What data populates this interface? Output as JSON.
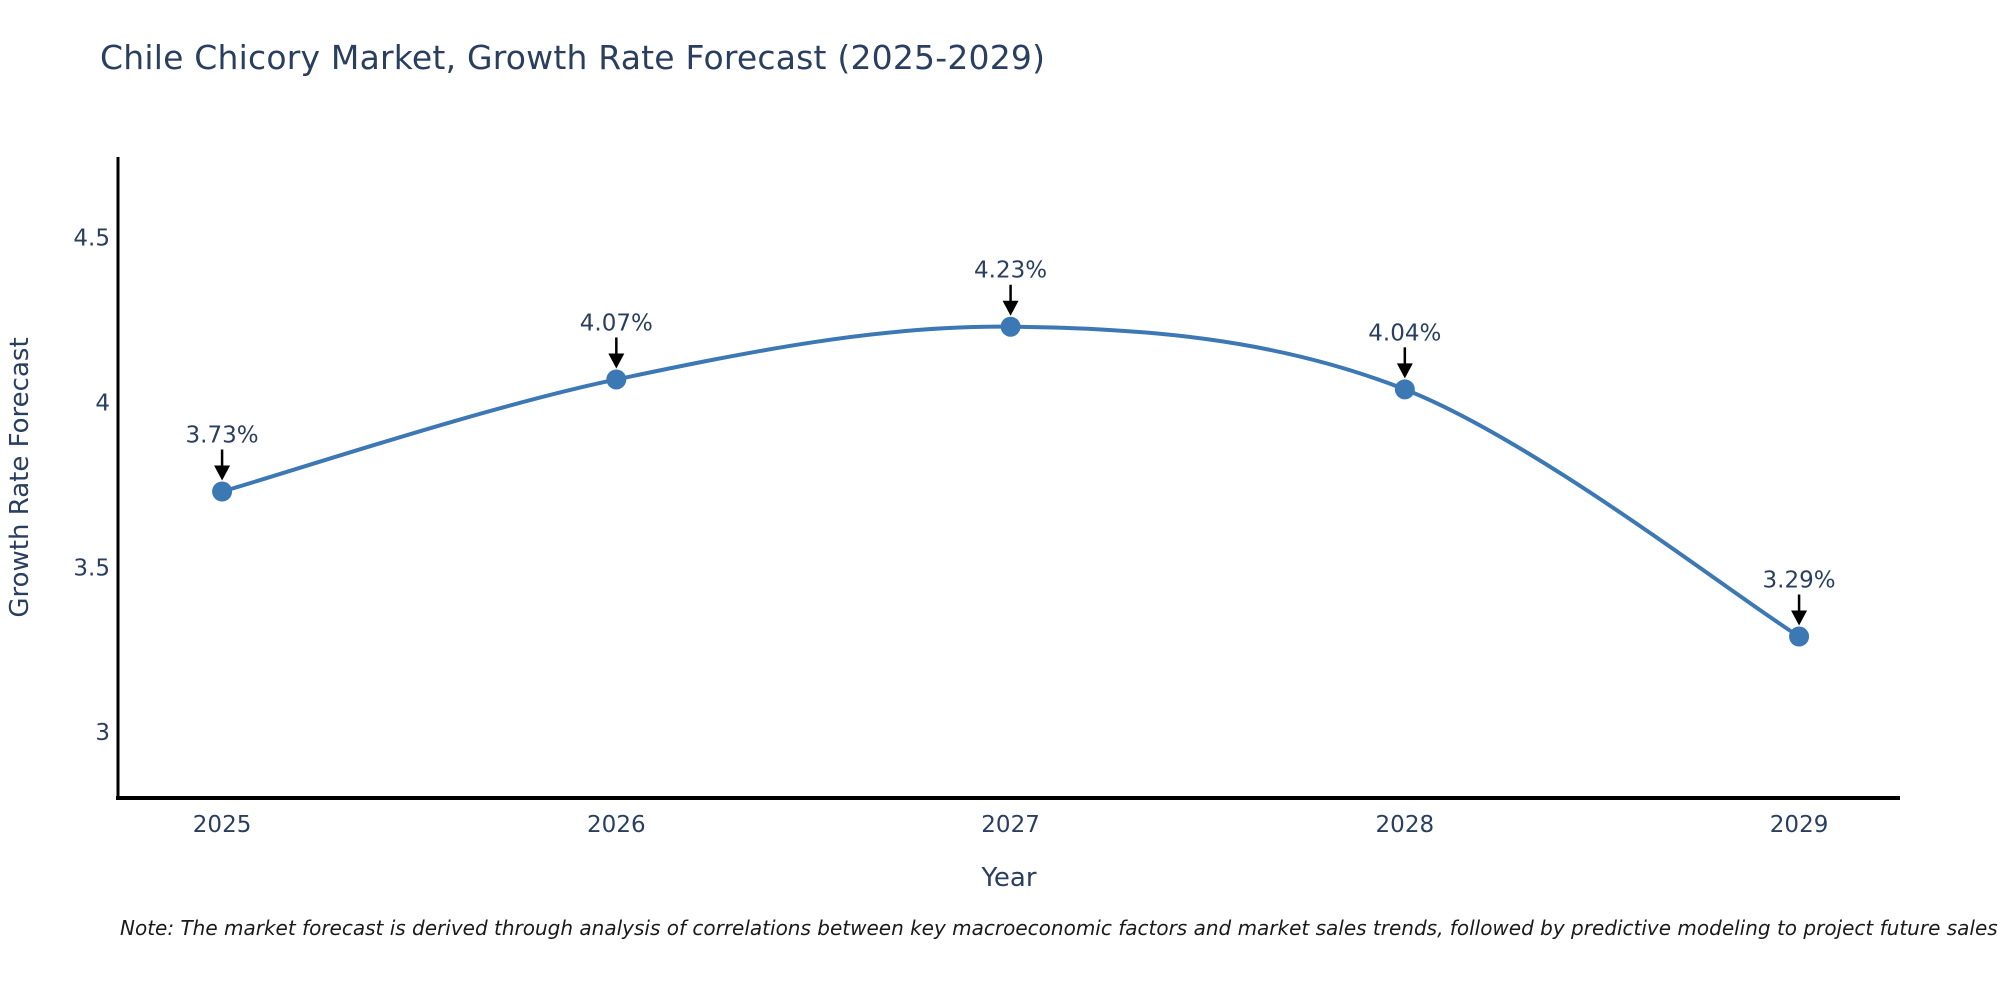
{
  "title": "Chile Chicory Market, Growth Rate Forecast (2025-2029)",
  "note": "Note: The market forecast is derived through analysis of correlations between key macroeconomic factors and market sales trends, followed by predictive modeling to project future sales",
  "colors": {
    "line": "#3C78B4",
    "marker": "#3C78B4",
    "arrow": "#000000",
    "axis_line": "#000000",
    "title_text": "#2A3F5F",
    "axis_text": "#2A3F5F",
    "annotation_text": "#2A3F5F",
    "note_text": "#1A1A1A",
    "background": "#FFFFFF"
  },
  "chart_data": {
    "type": "line",
    "title": "Chile Chicory Market, Growth Rate Forecast (2025-2029)",
    "x": [
      2025,
      2026,
      2027,
      2028,
      2029
    ],
    "values": [
      3.73,
      4.07,
      4.23,
      4.04,
      3.29
    ],
    "point_labels": [
      "3.73%",
      "4.07%",
      "4.23%",
      "4.04%",
      "3.29%"
    ],
    "xlabel": "Year",
    "ylabel": "Growth Rate Forecast",
    "x_ticks": [
      "2025",
      "2026",
      "2027",
      "2028",
      "2029"
    ],
    "x_tick_values": [
      2025,
      2026,
      2027,
      2028,
      2029
    ],
    "y_ticks": [
      "4.5",
      "4",
      "3.5",
      "3"
    ],
    "y_tick_values": [
      4.5,
      4,
      3.5,
      3
    ],
    "x_range": [
      2024.736,
      2029.256
    ],
    "y_range": [
      2.8,
      4.745
    ],
    "line_shape": "spline",
    "markers": true,
    "grid": false,
    "legend": false,
    "annotations": "black down-arrows from each percentage label to its data point"
  }
}
